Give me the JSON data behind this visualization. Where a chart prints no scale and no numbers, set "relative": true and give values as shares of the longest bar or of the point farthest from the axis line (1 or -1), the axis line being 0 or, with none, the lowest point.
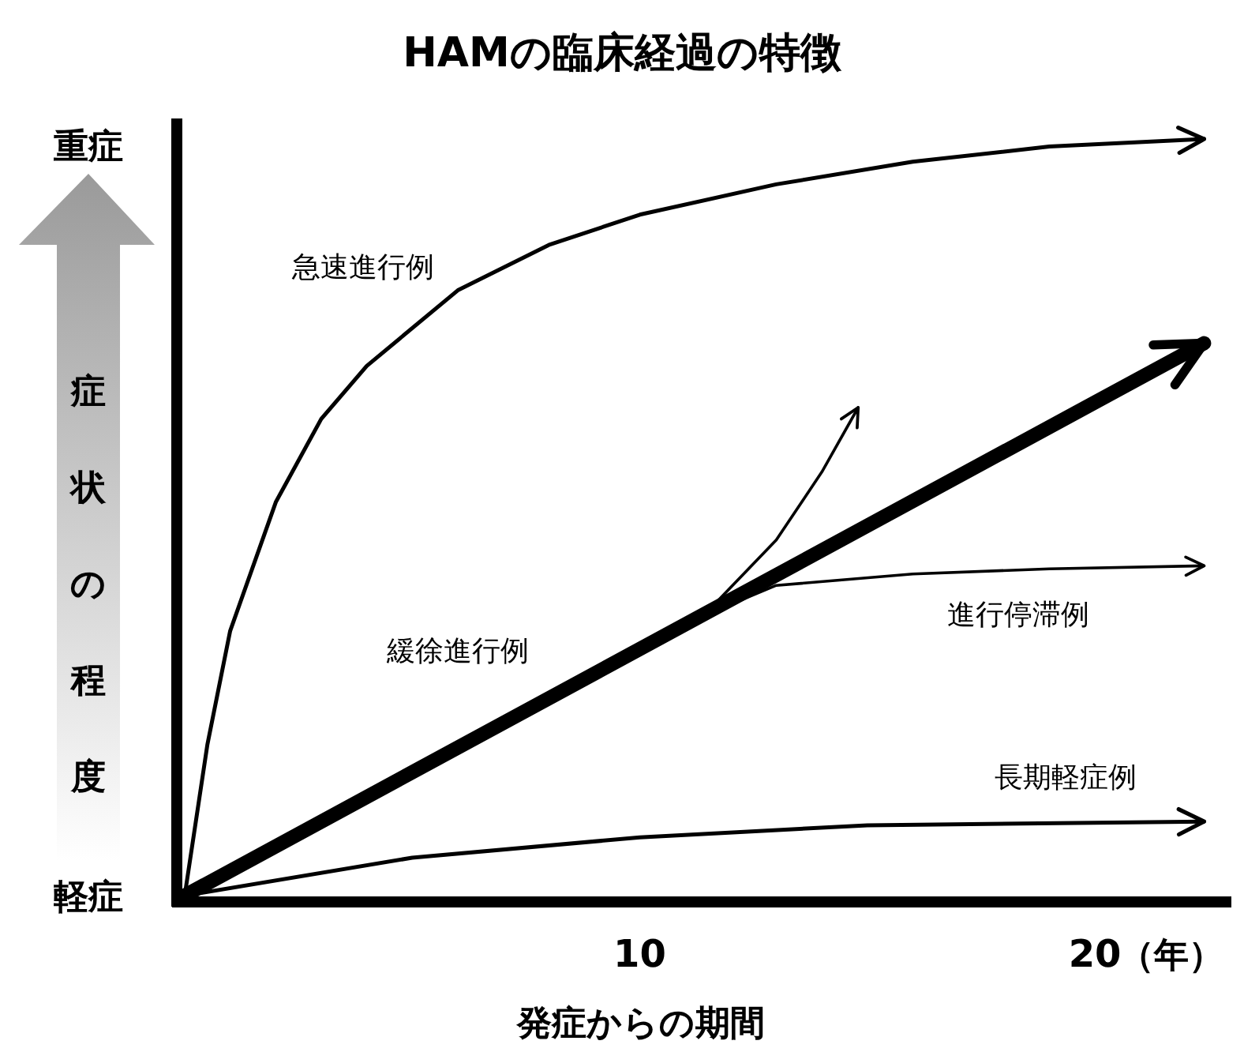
{
  "chart_data": {
    "type": "line",
    "title": "HAMの臨床経過の特徴",
    "xlabel": "発症からの期間",
    "ylabel": "症状の程度",
    "annotations": [
      "重症",
      "軽症",
      "（年）"
    ],
    "relative": true,
    "xlim": [
      0,
      23
    ],
    "xticks": [
      10,
      20
    ],
    "grid": false,
    "legend": false,
    "marker": "none",
    "line_style": "solid",
    "series": [
      {
        "name": "急速進行例",
        "color": "#000000",
        "x": [
          0,
          0.5,
          1,
          2,
          3,
          4,
          6,
          8,
          10,
          13,
          16,
          19,
          22.4
        ],
        "values": [
          0,
          0.2,
          0.35,
          0.52,
          0.63,
          0.7,
          0.8,
          0.86,
          0.9,
          0.94,
          0.97,
          0.99,
          1.0
        ]
      },
      {
        "name": "緩徐進行例",
        "color": "#000000",
        "x": [
          0,
          22.4
        ],
        "values": [
          0,
          0.73
        ]
      },
      {
        "color": "#000000",
        "x": [
          11.4,
          13,
          14,
          14.8
        ],
        "values": [
          0.37,
          0.47,
          0.56,
          0.645
        ]
      },
      {
        "name": "進行停滞例",
        "color": "#000000",
        "x": [
          11.4,
          13,
          16,
          19,
          22.4
        ],
        "values": [
          0.37,
          0.41,
          0.425,
          0.432,
          0.436
        ]
      },
      {
        "name": "長期軽症例",
        "color": "#000000",
        "x": [
          0,
          5,
          10,
          15,
          22.4
        ],
        "values": [
          0,
          0.05,
          0.077,
          0.093,
          0.098
        ]
      }
    ]
  }
}
